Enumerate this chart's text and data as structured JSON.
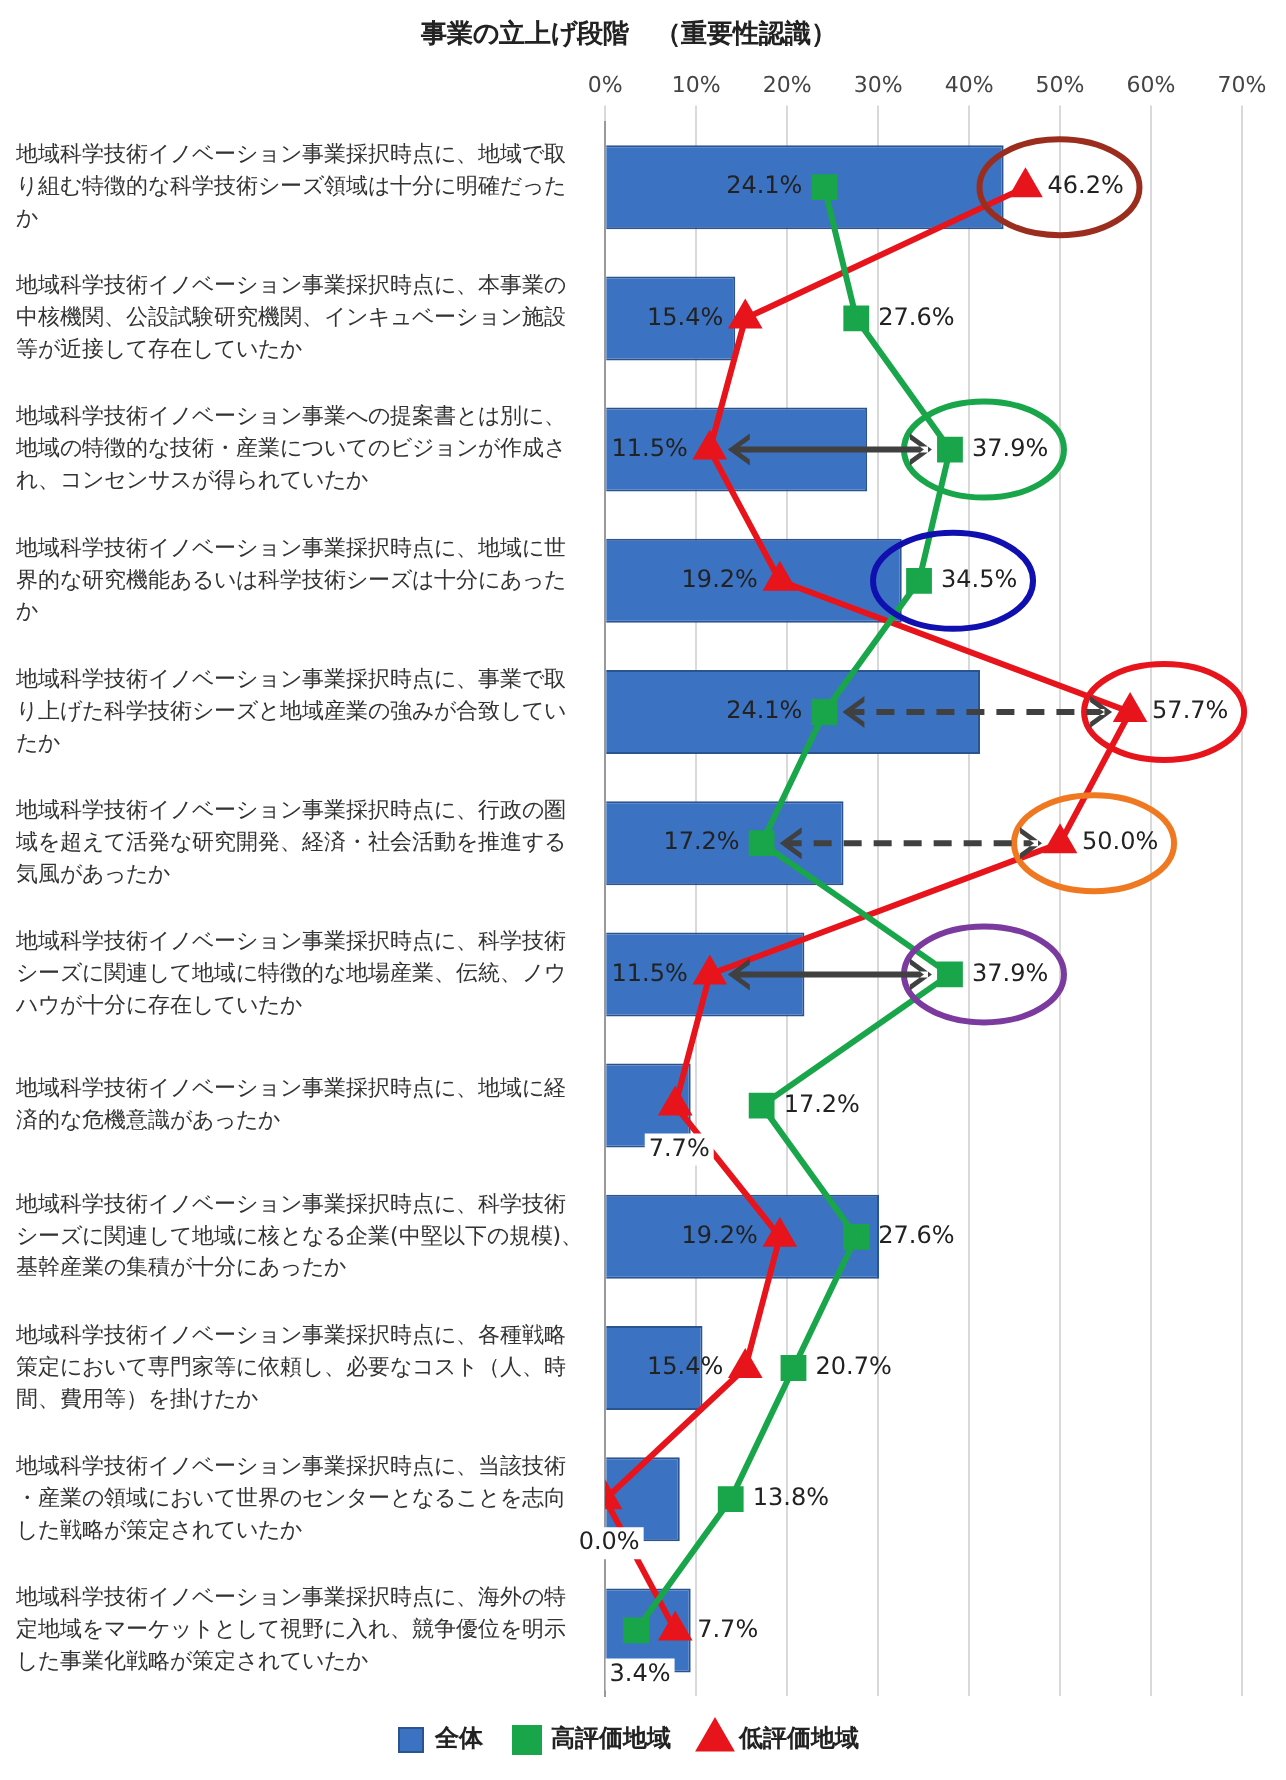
{
  "chart_data": {
    "type": "bar",
    "orientation": "horizontal",
    "title": "事業の立上げ段階　（重要性認識）",
    "categories": [
      "地域科学技術イノベーション事業採択時点に、地域で取り組む特徴的な科学技術シーズ領域は十分に明確だったか",
      "地域科学技術イノベーション事業採択時点に、本事業の中核機関、公設試験研究機関、インキュベーション施設等が近接して存在していたか",
      "地域科学技術イノベーション事業への提案書とは別に、地域の特徴的な技術・産業についてのビジョンが作成され、コンセンサスが得られていたか",
      "地域科学技術イノベーション事業採択時点に、地域に世界的な研究機能あるいは科学技術シーズは十分にあったか",
      "地域科学技術イノベーション事業採択時点に、事業で取り上げた科学技術シーズと地域産業の強みが合致していたか",
      "地域科学技術イノベーション事業採択時点に、行政の圏域を超えて活発な研究開発、経済・社会活動を推進する気風があったか",
      "地域科学技術イノベーション事業採択時点に、科学技術シーズに関連して地域に特徴的な地場産業、伝統、ノウハウが十分に存在していたか",
      "地域科学技術イノベーション事業採択時点に、地域に経済的な危機意識があったか",
      "地域科学技術イノベーション事業採択時点に、科学技術シーズに関連して地域に核となる企業(中堅以下の規模)、基幹産業の集積が十分にあったか",
      "地域科学技術イノベーション事業採択時点に、各種戦略策定において専門家等に依頼し、必要なコスト（人、時間、費用等）を掛けたか",
      "地域科学技術イノベーション事業採択時点に、当該技術・産業の領域において世界のセンターとなることを志向した戦略が策定されていたか",
      "地域科学技術イノベーション事業採択時点に、海外の特定地域をマーケットとして視野に入れ、競争優位を明示した事業化戦略が策定されていたか"
    ],
    "series": [
      {
        "name": "全体",
        "color": "#3b73c2",
        "values": [
          43.8,
          14.3,
          28.8,
          32.6,
          41.2,
          26.2,
          21.9,
          9.4,
          30.1,
          10.7,
          8.2,
          9.4
        ]
      },
      {
        "type": "line",
        "name": "高評価地域",
        "color": "#19a64a",
        "marker": "square",
        "values": [
          24.1,
          27.6,
          37.9,
          34.5,
          24.1,
          17.2,
          37.9,
          17.2,
          27.6,
          20.7,
          13.8,
          3.4
        ],
        "value_labels": [
          "24.1%",
          "27.6%",
          "37.9%",
          "34.5%",
          "24.1%",
          "17.2%",
          "37.9%",
          "17.2%",
          "27.6%",
          "20.7%",
          "13.8%",
          "3.4%"
        ]
      },
      {
        "type": "line",
        "name": "低評価地域",
        "color": "#e8141c",
        "marker": "triangle",
        "values": [
          46.2,
          15.4,
          11.5,
          19.2,
          57.7,
          50.0,
          11.5,
          7.7,
          19.2,
          15.4,
          0.0,
          7.7
        ],
        "value_labels": [
          "46.2%",
          "15.4%",
          "11.5%",
          "19.2%",
          "57.7%",
          "50.0%",
          "11.5%",
          "7.7%",
          "19.2%",
          "15.4%",
          "0.0%",
          "7.7%"
        ]
      }
    ],
    "xlim": [
      0,
      70
    ],
    "xticks": [
      {
        "value": 0,
        "label": "0%"
      },
      {
        "value": 10,
        "label": "10%"
      },
      {
        "value": 20,
        "label": "20%"
      },
      {
        "value": 30,
        "label": "30%"
      },
      {
        "value": 40,
        "label": "40%"
      },
      {
        "value": 50,
        "label": "50%"
      },
      {
        "value": 60,
        "label": "60%"
      },
      {
        "value": 70,
        "label": "70%"
      }
    ],
    "grid": "x",
    "legend": "bottom"
  }
}
